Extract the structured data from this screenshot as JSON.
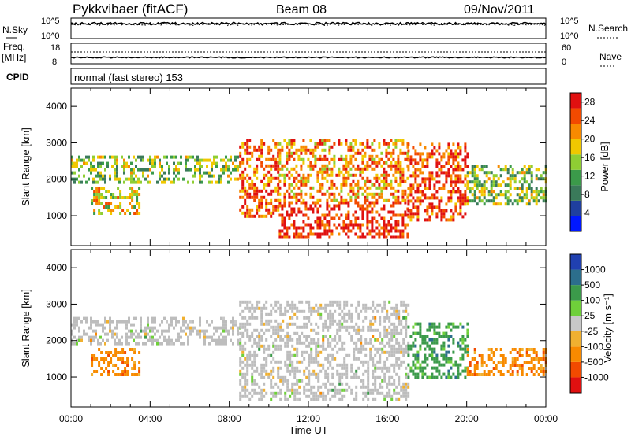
{
  "header": {
    "station": "Pykkvibaer (fitACF)",
    "beam": "Beam 08",
    "date": "09/Nov/2011"
  },
  "panels": {
    "nsky": {
      "left_label": "N.Sky",
      "right_label": "N.Search",
      "left_ticks": [
        "10^5",
        "10^0"
      ],
      "right_ticks": [
        "10^5",
        "10^0"
      ]
    },
    "freq": {
      "left_label": "Freq.",
      "left_unit": "[MHz]",
      "right_label": "Nave",
      "left_ticks": [
        "18",
        "8"
      ],
      "right_ticks": [
        "60",
        "0"
      ]
    },
    "cpid": {
      "label": "CPID",
      "mode": "normal (fast stereo) 153"
    }
  },
  "colors": {
    "power_scale": [
      "#0018ff",
      "#1f3f9f",
      "#3a7a5a",
      "#3b9a4a",
      "#8fce33",
      "#f0c800",
      "#f88a00",
      "#f24a00",
      "#e01010"
    ],
    "velocity_scale": [
      "#e01010",
      "#f24a00",
      "#f88a00",
      "#f0b030",
      "#c8c8c8",
      "#6fd03a",
      "#3b9a4a",
      "#2c6e8c",
      "#2040b0"
    ],
    "ground_scatter": "#bdbdbd"
  },
  "chart_data": [
    {
      "type": "heatmap",
      "title": "Power",
      "xlabel": "Time UT",
      "ylabel": "Slant Range [km]",
      "x_ticks": [
        "00:00",
        "04:00",
        "08:00",
        "12:00",
        "16:00",
        "20:00",
        "00:00"
      ],
      "xlim_hours": [
        0,
        24
      ],
      "ylim_km": [
        180,
        4500
      ],
      "y_ticks": [
        1000,
        2000,
        3000,
        4000
      ],
      "colorbar": {
        "label": "Power [dB]",
        "ticks": [
          4,
          8,
          12,
          16,
          20,
          24,
          28
        ],
        "range": [
          0,
          30
        ]
      },
      "echo_bands": [
        {
          "t_start": 0.0,
          "t_end": 8.5,
          "range_low_km": 1900,
          "range_high_km": 2650,
          "power_db": 14
        },
        {
          "t_start": 1.0,
          "t_end": 3.5,
          "range_low_km": 1100,
          "range_high_km": 1800,
          "power_db": 18
        },
        {
          "t_start": 8.5,
          "t_end": 10.5,
          "range_low_km": 1000,
          "range_high_km": 3100,
          "power_db": 24
        },
        {
          "t_start": 10.5,
          "t_end": 17.0,
          "range_low_km": 380,
          "range_high_km": 1400,
          "power_db": 28
        },
        {
          "t_start": 10.5,
          "t_end": 17.0,
          "range_low_km": 1400,
          "range_high_km": 3100,
          "power_db": 22
        },
        {
          "t_start": 17.0,
          "t_end": 20.0,
          "range_low_km": 900,
          "range_high_km": 3000,
          "power_db": 26
        },
        {
          "t_start": 20.0,
          "t_end": 24.0,
          "range_low_km": 1300,
          "range_high_km": 2400,
          "power_db": 14
        }
      ]
    },
    {
      "type": "heatmap",
      "title": "Velocity",
      "xlabel": "Time UT",
      "ylabel": "Slant Range [km]",
      "x_ticks": [
        "00:00",
        "04:00",
        "08:00",
        "12:00",
        "16:00",
        "20:00",
        "00:00"
      ],
      "xlim_hours": [
        0,
        24
      ],
      "ylim_km": [
        180,
        4500
      ],
      "y_ticks": [
        1000,
        2000,
        3000,
        4000
      ],
      "colorbar": {
        "label": "Velocity [m s⁻¹]",
        "ticks": [
          1000,
          500,
          100,
          25,
          -25,
          -100,
          -500,
          -1000
        ]
      },
      "echo_bands": [
        {
          "t_start": 0.0,
          "t_end": 8.5,
          "range_low_km": 1900,
          "range_high_km": 2650,
          "velocity_ms": 0
        },
        {
          "t_start": 1.0,
          "t_end": 3.5,
          "range_low_km": 1100,
          "range_high_km": 1800,
          "velocity_ms": -300
        },
        {
          "t_start": 8.5,
          "t_end": 17.0,
          "range_low_km": 380,
          "range_high_km": 3100,
          "velocity_ms": 0
        },
        {
          "t_start": 17.0,
          "t_end": 20.0,
          "range_low_km": 1000,
          "range_high_km": 2500,
          "velocity_ms": 300
        },
        {
          "t_start": 20.0,
          "t_end": 24.0,
          "range_low_km": 1100,
          "range_high_km": 1800,
          "velocity_ms": -300
        }
      ]
    }
  ]
}
